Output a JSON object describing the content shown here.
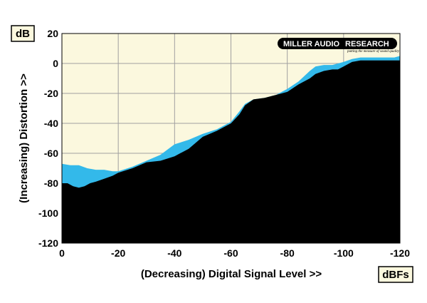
{
  "chart_data": {
    "type": "area",
    "title": "",
    "xlabel": "(Decreasing) Digital Signal Level >>",
    "ylabel": "(Increasing) Distortion >>",
    "x_unit": "dBFs",
    "y_unit": "dB",
    "xlim": [
      0,
      -120
    ],
    "ylim": [
      -120,
      20
    ],
    "x_ticks": [
      0,
      -20,
      -40,
      -60,
      -80,
      -100,
      -120
    ],
    "y_ticks": [
      20,
      0,
      -20,
      -40,
      -60,
      -80,
      -100,
      -120
    ],
    "x_tick_labels": [
      "0",
      "-20",
      "-40",
      "-60",
      "-80",
      "-100",
      "-120"
    ],
    "y_tick_labels": [
      "20",
      "0",
      "-20",
      "-40",
      "-60",
      "-80",
      "-100",
      "-120"
    ],
    "grid": true,
    "background_color": "#fbf8de",
    "series": [
      {
        "color": "#33b9ea",
        "x": [
          0,
          -3,
          -6,
          -9,
          -12,
          -15,
          -18,
          -20,
          -25,
          -30,
          -35,
          -40,
          -45,
          -50,
          -55,
          -60,
          -63,
          -65,
          -68,
          -72,
          -76,
          -80,
          -84,
          -88,
          -90,
          -93,
          -96,
          -98,
          -100,
          -103,
          -106,
          -110,
          -115,
          -118,
          -120
        ],
        "values": [
          -67,
          -68,
          -68,
          -70,
          -71,
          -71,
          -72,
          -72,
          -69,
          -65,
          -61,
          -54,
          -51,
          -47,
          -44,
          -39,
          -32,
          -27,
          -24,
          -23,
          -21,
          -17,
          -12,
          -5,
          -2,
          -1,
          -1,
          0,
          1,
          3,
          4,
          4,
          4,
          4,
          5
        ]
      },
      {
        "color": "#000000",
        "x": [
          0,
          -1,
          -2,
          -4,
          -6,
          -8,
          -10,
          -12,
          -15,
          -18,
          -20,
          -25,
          -30,
          -35,
          -40,
          -45,
          -50,
          -55,
          -60,
          -63,
          -65,
          -68,
          -72,
          -76,
          -80,
          -84,
          -88,
          -90,
          -93,
          -96,
          -98,
          -100,
          -103,
          -106,
          -110,
          -115,
          -118,
          -120
        ],
        "values": [
          -80,
          -80,
          -80,
          -82,
          -83,
          -82,
          -80,
          -79,
          -77,
          -75,
          -73,
          -70,
          -66,
          -65,
          -62,
          -57,
          -49,
          -45,
          -40,
          -34,
          -28,
          -24,
          -23,
          -21,
          -19,
          -14,
          -10,
          -7,
          -5,
          -4,
          -4,
          -2,
          1,
          2,
          2,
          2,
          2,
          2
        ]
      }
    ]
  },
  "logo": {
    "text_left": "MILLER AUDIO",
    "text_right": "RESEARCH",
    "tagline": "putting the measure of sound quality"
  }
}
